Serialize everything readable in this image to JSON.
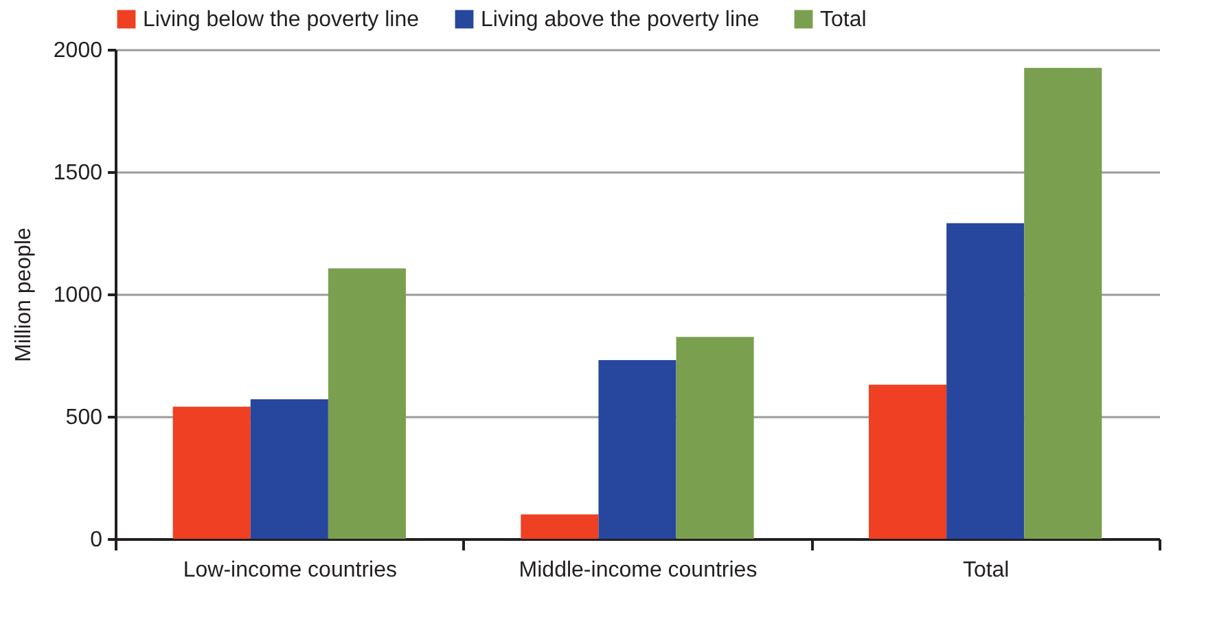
{
  "chart_data": {
    "type": "bar",
    "ylabel": "Million people",
    "categories": [
      "Low-income countries",
      "Middle-income countries",
      "Total"
    ],
    "series": [
      {
        "name": "Living below the poverty line",
        "color": "#ef4023",
        "values": [
          540,
          100,
          630
        ]
      },
      {
        "name": "Living above the poverty line",
        "color": "#27479e",
        "values": [
          570,
          730,
          1290
        ]
      },
      {
        "name": "Total",
        "color": "#7a9f4f",
        "values": [
          1105,
          825,
          1925
        ]
      }
    ],
    "ylim": [
      0,
      2000
    ],
    "yticks": [
      0,
      500,
      1000,
      1500,
      2000
    ],
    "grid": "y",
    "legend": "top"
  }
}
